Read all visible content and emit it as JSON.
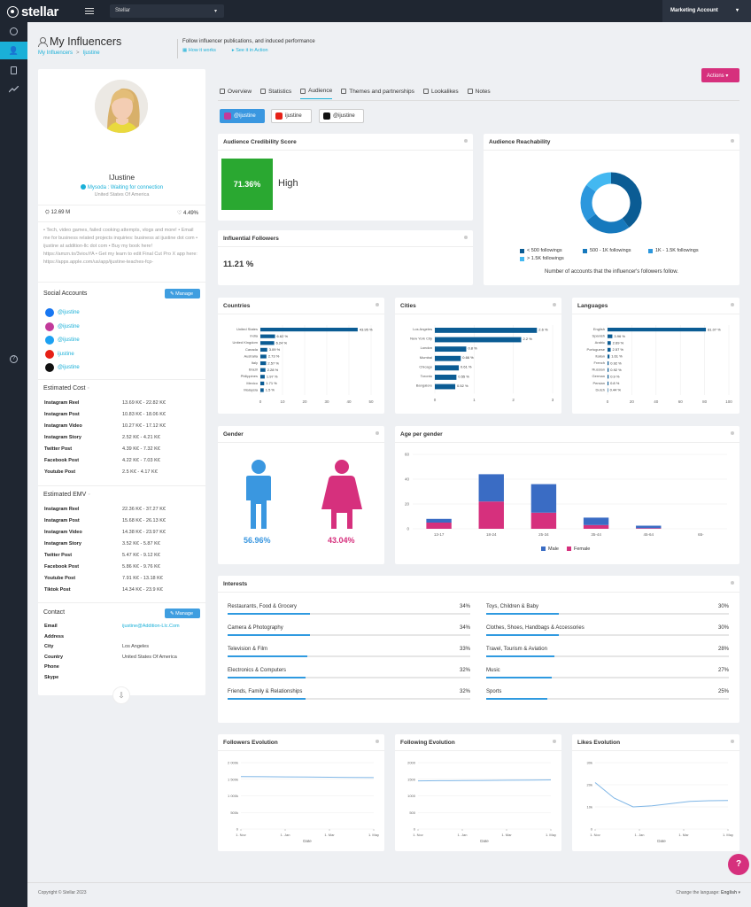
{
  "app": {
    "brand": "stellar",
    "workspace": "Stellar",
    "account": "Marketing Account"
  },
  "page": {
    "title": "My Influencers",
    "breadcrumb": [
      "My Influencers",
      "Ijustine"
    ],
    "subtitle": "Follow influencer publications, and induced performance",
    "links": [
      "How it works",
      "See it in Action"
    ],
    "actions_label": "Actions"
  },
  "profile": {
    "name": "IJustine",
    "status": "Mysoda : Waiting for connection",
    "location": "United States Of America",
    "followers": "12.69 M",
    "engagement": "4.49%",
    "bio": "• Tech, video games, failed cooking attempts, vlogs and more! • Email me for business related projects inquiries: business at ijustine dot com • ijustine at addition-llc dot com • Buy my book here! https://amzn.to/3viouYA • Get my learn to edit Final Cut Pro X app here: https://apps.apple.com/us/app/ijustine-teaches-fcp-",
    "social_title": "Social Accounts",
    "manage_label": "Manage",
    "social_accounts": [
      {
        "network": "facebook",
        "handle": "@ijustine",
        "color": "#1877f2"
      },
      {
        "network": "instagram",
        "handle": "@ijustine",
        "color": "#c23a9a"
      },
      {
        "network": "twitter",
        "handle": "@ijustine",
        "color": "#1da1f2"
      },
      {
        "network": "youtube",
        "handle": "ijustine",
        "color": "#e62117"
      },
      {
        "network": "tiktok",
        "handle": "@ijustine",
        "color": "#111111"
      }
    ],
    "cost_title": "Estimated Cost",
    "estimated_cost": [
      {
        "k": "Instagram Reel",
        "v": "13.69 K€ - 22.82 K€"
      },
      {
        "k": "Instagram Post",
        "v": "10.83 K€ - 18.06 K€"
      },
      {
        "k": "Instagram Video",
        "v": "10.27 K€ - 17.12 K€"
      },
      {
        "k": "Instagram Story",
        "v": "2.52 K€ - 4.21 K€"
      },
      {
        "k": "Twitter Post",
        "v": "4.39 K€ - 7.32 K€"
      },
      {
        "k": "Facebook Post",
        "v": "4.22 K€ - 7.03 K€"
      },
      {
        "k": "Youtube Post",
        "v": "2.5 K€ - 4.17 K€"
      }
    ],
    "emv_title": "Estimated EMV",
    "estimated_emv": [
      {
        "k": "Instagram Reel",
        "v": "22.36 K€ - 37.27 K€"
      },
      {
        "k": "Instagram Post",
        "v": "15.68 K€ - 26.13 K€"
      },
      {
        "k": "Instagram Video",
        "v": "14.38 K€ - 23.97 K€"
      },
      {
        "k": "Instagram Story",
        "v": "3.52 K€ - 5.87 K€"
      },
      {
        "k": "Twitter Post",
        "v": "5.47 K€ - 9.12 K€"
      },
      {
        "k": "Facebook Post",
        "v": "5.86 K€ - 9.76 K€"
      },
      {
        "k": "Youtube Post",
        "v": "7.91 K€ - 13.18 K€"
      },
      {
        "k": "Tiktok Post",
        "v": "14.34 K€ - 23.9 K€"
      }
    ],
    "contact_title": "Contact",
    "contact": [
      {
        "k": "Email",
        "v": "ijustine@Addition-Llc.Com"
      },
      {
        "k": "Address",
        "v": ""
      },
      {
        "k": "City",
        "v": "Los Angeles"
      },
      {
        "k": "Country",
        "v": "United States Of America"
      },
      {
        "k": "Phone",
        "v": ""
      },
      {
        "k": "Skype",
        "v": ""
      }
    ]
  },
  "tabs": [
    "Overview",
    "Statistics",
    "Audience",
    "Themes and partnerships",
    "Lookalikes",
    "Notes"
  ],
  "networks": [
    "@ijustine",
    "ijustine",
    "@ijustine"
  ],
  "credibility": {
    "title": "Audience Credibility Score",
    "value": "71.36%",
    "label": "High",
    "color": "#2aa831"
  },
  "influential": {
    "title": "Influential Followers",
    "value": "11.21 %"
  },
  "reachability": {
    "title": "Audience Reachability",
    "note": "Number of accounts that the influencer's followers follow.",
    "legend": [
      "< 500 followings",
      "500 - 1K followings",
      "1K - 1.5K followings",
      "> 1.5K followings"
    ],
    "colors": [
      "#0b5c94",
      "#1679bd",
      "#2c97dd",
      "#43b8f1"
    ]
  },
  "countries": {
    "title": "Countries",
    "labels": [
      "United States",
      "India",
      "United Kingdom",
      "Canada",
      "Australia",
      "Italy",
      "Brazil",
      "Philippines",
      "Mexico",
      "Malaysia"
    ],
    "values": [
      43.95,
      6.62,
      6.24,
      3.09,
      2.73,
      2.57,
      2.28,
      1.97,
      1.71,
      1.5
    ],
    "value_labels": [
      "43.95 %",
      "6.62 %",
      "6.24 %",
      "3.09 %",
      "2.73 %",
      "2.57 %",
      "2.28 %",
      "1.97 %",
      "1.71 %",
      "1.5 %"
    ],
    "ticks": [
      "0",
      "10",
      "20",
      "30",
      "40",
      "50"
    ],
    "max": 50
  },
  "cities": {
    "title": "Cities",
    "labels": [
      "Los Angeles",
      "New York City",
      "London",
      "Mumbai",
      "Chicago",
      "Toronto",
      "Bangalore"
    ],
    "values": [
      2.6,
      2.2,
      0.8,
      0.66,
      0.61,
      0.55,
      0.52
    ],
    "value_labels": [
      "2.6 %",
      "2.2 %",
      "0.8 %",
      "0.66 %",
      "0.61 %",
      "0.55 %",
      "0.52 %"
    ],
    "ticks": [
      "0",
      "1",
      "2",
      "3"
    ],
    "max": 3
  },
  "languages": {
    "title": "Languages",
    "labels": [
      "English",
      "Spanish",
      "Arabic",
      "Portuguese",
      "Italian",
      "French",
      "Russian",
      "German",
      "Persian",
      "Dutch"
    ],
    "values": [
      81.07,
      3.96,
      2.69,
      2.57,
      1.61,
      0.92,
      0.92,
      0.9,
      0.8,
      0.44
    ],
    "value_labels": [
      "81.07 %",
      "3.96 %",
      "2.69 %",
      "2.57 %",
      "1.61 %",
      "0.92 %",
      "0.92 %",
      "0.9 %",
      "0.8 %",
      "0.44 %"
    ],
    "ticks": [
      "0",
      "20",
      "40",
      "60",
      "80",
      "100"
    ],
    "max": 100
  },
  "gender": {
    "title": "Gender",
    "male": "56.96%",
    "female": "43.04%",
    "male_color": "#3a97e0",
    "female_color": "#d6307d"
  },
  "age_gender": {
    "title": "Age per gender",
    "categories": [
      "13-17",
      "18-24",
      "25-34",
      "35-44",
      "45-64",
      "65-"
    ],
    "male": [
      3,
      22,
      23,
      6,
      2,
      0
    ],
    "female": [
      5,
      22,
      13,
      3,
      0.5,
      0
    ],
    "yticks": [
      "0",
      "20",
      "40",
      "60"
    ],
    "ymax": 60,
    "legend": [
      "Male",
      "Female"
    ]
  },
  "interests": {
    "title": "Interests",
    "items": [
      {
        "label": "Restaurants, Food & Grocery",
        "pct": "34%",
        "v": 34
      },
      {
        "label": "Toys, Children & Baby",
        "pct": "30%",
        "v": 30
      },
      {
        "label": "Camera & Photography",
        "pct": "34%",
        "v": 34
      },
      {
        "label": "Clothes, Shoes, Handbags & Accessories",
        "pct": "30%",
        "v": 30
      },
      {
        "label": "Television & Film",
        "pct": "33%",
        "v": 33
      },
      {
        "label": "Travel, Tourism & Aviation",
        "pct": "28%",
        "v": 28
      },
      {
        "label": "Electronics & Computers",
        "pct": "32%",
        "v": 32
      },
      {
        "label": "Music",
        "pct": "27%",
        "v": 27
      },
      {
        "label": "Friends, Family & Relationships",
        "pct": "32%",
        "v": 32
      },
      {
        "label": "Sports",
        "pct": "25%",
        "v": 25
      }
    ]
  },
  "evolutions": [
    {
      "title": "Followers Evolution",
      "yticks": [
        "0",
        "500k",
        "1 000k",
        "1 500k",
        "2 000k"
      ],
      "xticks": [
        "1. Nov",
        "1. Jan",
        "1. Mar",
        "1. May"
      ],
      "xlabel": "Date",
      "ymax": 2000,
      "values": [
        1580,
        1575,
        1570,
        1565,
        1560,
        1555,
        1550
      ]
    },
    {
      "title": "Following Evolution",
      "yticks": [
        "0",
        "500",
        "1000",
        "1500",
        "2000"
      ],
      "xticks": [
        "1. Nov",
        "1. Jan",
        "1. Mar",
        "1. May"
      ],
      "xlabel": "Date",
      "ymax": 2000,
      "values": [
        1450,
        1455,
        1460,
        1465,
        1470,
        1475,
        1480
      ]
    },
    {
      "title": "Likes Evolution",
      "yticks": [
        "0",
        "10k",
        "20k",
        "30k"
      ],
      "xticks": [
        "1. Nov",
        "1. Jan",
        "1. Mar",
        "1. May"
      ],
      "xlabel": "Date",
      "ymax": 30,
      "values": [
        21,
        14,
        10,
        10.5,
        11.5,
        12.5,
        12.8,
        12.9
      ]
    }
  ],
  "footer": {
    "copyright": "Copyright © Stellar 2023",
    "language_label": "Change the language:",
    "language": "English"
  }
}
